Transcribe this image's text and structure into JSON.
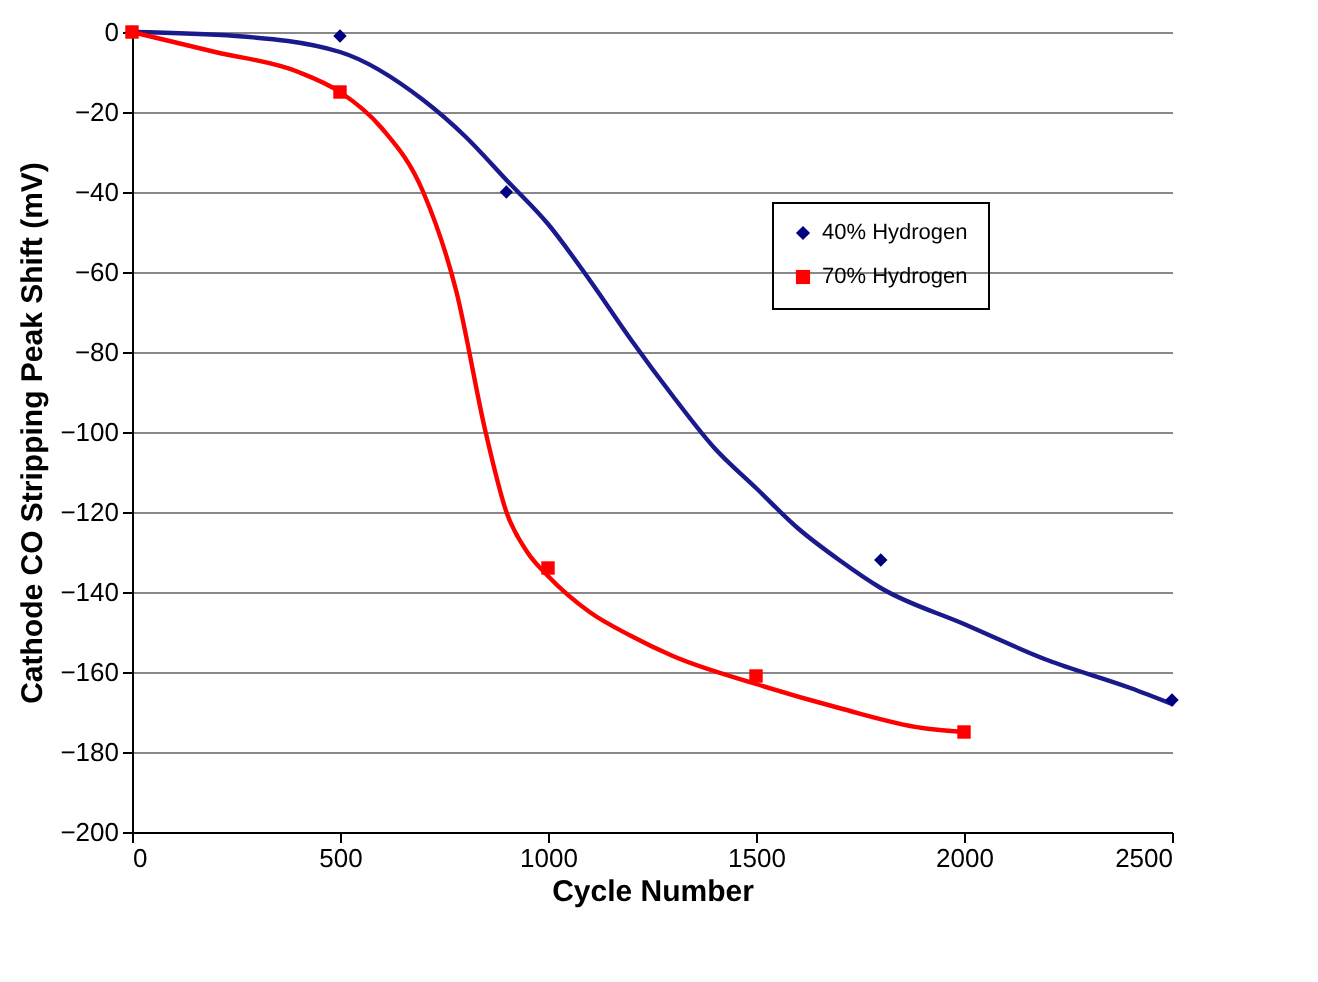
{
  "chart_data": {
    "type": "scatter",
    "xlabel": "Cycle Number",
    "ylabel": "Cathode CO Stripping Peak Shift (mV)",
    "xlim": [
      0,
      2500
    ],
    "xticks": [
      0,
      500,
      1000,
      1500,
      2000,
      2500
    ],
    "ylim": [
      -200,
      0
    ],
    "yticks": [
      -200,
      -180,
      -160,
      -140,
      -120,
      -100,
      -80,
      -60,
      -40,
      -20,
      0
    ],
    "grid": "y",
    "legend": "top right",
    "line_style": "solid",
    "series": [
      {
        "name": "40% Hydrogen",
        "type": "scatter",
        "marker": "diamond",
        "color": "#000080",
        "x": [
          0,
          500,
          900,
          1800,
          2500
        ],
        "values": [
          0,
          -1,
          -40,
          -132,
          -167
        ]
      },
      {
        "name": "70% Hydrogen",
        "type": "scatter",
        "marker": "square",
        "color": "#ff0000",
        "x": [
          0,
          500,
          1000,
          1500,
          2000
        ],
        "values": [
          0,
          -15,
          -134,
          -161,
          -175
        ]
      },
      {
        "type": "line",
        "color": "#1a1a8c",
        "x": [
          0,
          250,
          500,
          700,
          800,
          900,
          1000,
          1100,
          1200,
          1300,
          1400,
          1500,
          1600,
          1700,
          1800,
          2000,
          2200,
          2400,
          2500
        ],
        "values": [
          0,
          -1,
          -5,
          -17,
          -26,
          -37,
          -48,
          -62,
          -77,
          -91,
          -104,
          -114,
          -124,
          -132,
          -139,
          -148,
          -157,
          -164,
          -168
        ]
      },
      {
        "type": "line",
        "color": "#ff0000",
        "x": [
          0,
          200,
          400,
          500,
          600,
          700,
          780,
          850,
          900,
          950,
          1000,
          1100,
          1200,
          1300,
          1500,
          1700,
          1900,
          2000
        ],
        "values": [
          0,
          -5,
          -10,
          -15,
          -24,
          -40,
          -65,
          -100,
          -120,
          -130,
          -136,
          -145,
          -151,
          -156,
          -163,
          -169,
          -174,
          -175
        ]
      }
    ]
  }
}
